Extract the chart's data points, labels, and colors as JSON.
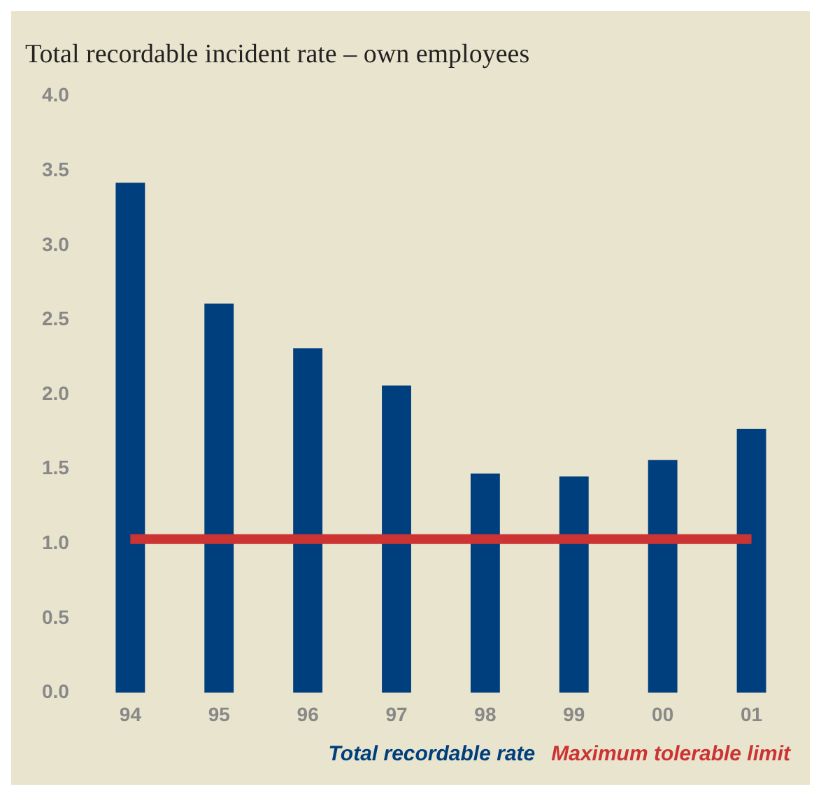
{
  "chart_data": {
    "type": "bar",
    "title": "Total recordable incident rate – own employees",
    "categories": [
      "94",
      "95",
      "96",
      "97",
      "98",
      "99",
      "00",
      "01"
    ],
    "series": [
      {
        "name": "Total recordable rate",
        "color": "#003f7d",
        "values": [
          3.42,
          2.61,
          2.31,
          2.06,
          1.47,
          1.45,
          1.56,
          1.77
        ]
      },
      {
        "name": "Maximum tolerable limit",
        "type": "line",
        "color": "#cc3333",
        "marker": "none",
        "line_style": "solid",
        "values": [
          1.03,
          1.03,
          1.03,
          1.03,
          1.03,
          1.03,
          1.03,
          1.03
        ]
      }
    ],
    "ylim": [
      0,
      4
    ],
    "yticks": [
      {
        "value": 0,
        "label": "0.0"
      },
      {
        "value": 0.5,
        "label": "0.5"
      },
      {
        "value": 1,
        "label": "1.0"
      },
      {
        "value": 1.5,
        "label": "1.5"
      },
      {
        "value": 2,
        "label": "2.0"
      },
      {
        "value": 2.5,
        "label": "2.5"
      },
      {
        "value": 3,
        "label": "3.0"
      },
      {
        "value": 3.5,
        "label": "3.5"
      },
      {
        "value": 4,
        "label": "4.0"
      }
    ],
    "grid": false,
    "legend": "bottom right"
  }
}
